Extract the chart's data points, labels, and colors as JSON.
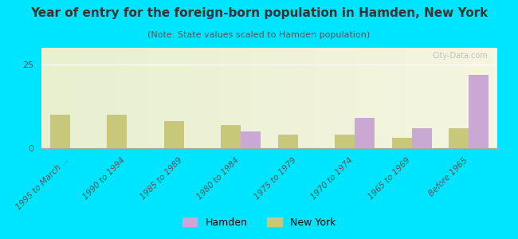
{
  "title": "Year of entry for the foreign-born population in Hamden, New York",
  "subtitle": "(Note: State values scaled to Hamden population)",
  "categories": [
    "1995 to March ...",
    "1990 to 1994",
    "1985 to 1989",
    "1980 to 1984",
    "1975 to 1979",
    "1970 to 1974",
    "1965 to 1969",
    "Before 1965"
  ],
  "hamden_values": [
    0,
    0,
    0,
    5,
    0,
    9,
    6,
    22
  ],
  "newyork_values": [
    10,
    10,
    8,
    7,
    4,
    4,
    3,
    6
  ],
  "hamden_color": "#c9a8d4",
  "newyork_color": "#c8c87a",
  "background_color": "#00e5ff",
  "plot_bg_top": "#e8f0d0",
  "plot_bg_bottom": "#f5f5e0",
  "title_color": "#333333",
  "subtitle_color": "#555555",
  "tick_label_color": "#555555",
  "ytick_label_color": "#555555",
  "ylim": [
    0,
    30
  ],
  "yticks": [
    0,
    25
  ],
  "bar_width": 0.35,
  "watermark": "City-Data.com",
  "legend_hamden": "Hamden",
  "legend_newyork": "New York"
}
